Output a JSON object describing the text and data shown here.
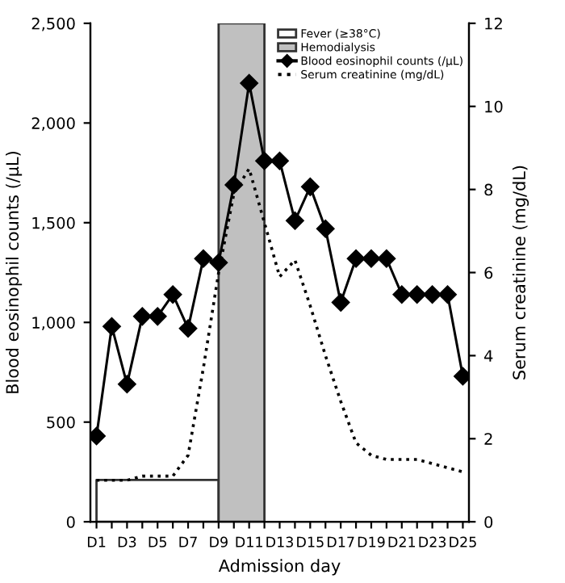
{
  "chart_data": {
    "type": "line",
    "xlabel": "Admission day",
    "ylabel": "Blood eosinophil counts (/μL)",
    "y2label": "Serum creatinine (mg/dL)",
    "categories": [
      "D1",
      null,
      "D3",
      null,
      "D5",
      null,
      "D7",
      null,
      "D9",
      null,
      "D11",
      null,
      "D13",
      null,
      "D15",
      null,
      "D17",
      null,
      "D19",
      null,
      "D21",
      null,
      "D23",
      null,
      "D25"
    ],
    "series": [
      {
        "name": "Fever (≥38°C)",
        "type": "area",
        "color": "#ffffff",
        "values": [
          210,
          210,
          210,
          210,
          210,
          210,
          210,
          210,
          210,
          null,
          null,
          null,
          null,
          null,
          null,
          null,
          null,
          null,
          null,
          null,
          null,
          null,
          null,
          null,
          null
        ]
      },
      {
        "name": "Hemodialysis",
        "type": "area",
        "color": "#c0c0c0",
        "values": [
          null,
          null,
          null,
          null,
          null,
          null,
          null,
          null,
          2500,
          2500,
          2500,
          2500,
          null,
          null,
          null,
          null,
          null,
          null,
          null,
          null,
          null,
          null,
          null,
          null,
          null
        ]
      },
      {
        "name": "Blood eosinophil counts (/μL)",
        "color": "#000000",
        "marker": "diamond",
        "line_style": "solid",
        "values": [
          430,
          980,
          690,
          1030,
          1030,
          1140,
          970,
          1320,
          1300,
          1690,
          2200,
          1810,
          1810,
          1510,
          1680,
          1470,
          1100,
          1320,
          1320,
          1320,
          1140,
          1140,
          1140,
          1140,
          730
        ]
      },
      {
        "name": "Serum creatinine (mg/dL)",
        "type": "line",
        "axis": "y2",
        "color": "#000000",
        "marker": "none",
        "line_style": "dotted",
        "values": [
          1.0,
          1.0,
          1.0,
          1.1,
          1.1,
          1.1,
          1.6,
          3.7,
          6.0,
          7.9,
          8.5,
          7.2,
          5.9,
          6.3,
          5.2,
          4.0,
          2.9,
          1.9,
          1.6,
          1.5,
          1.5,
          1.5,
          1.4,
          1.3,
          1.2
        ]
      }
    ],
    "ylim": [
      0,
      2500
    ],
    "yticks": [
      {
        "value": 0,
        "label": "0"
      },
      {
        "value": 500,
        "label": "500"
      },
      {
        "value": 1000,
        "label": "1,000"
      },
      {
        "value": 1500,
        "label": "1,500"
      },
      {
        "value": 2000,
        "label": "2,000"
      },
      {
        "value": 2500,
        "label": "2,500"
      }
    ],
    "y2lim": [
      0,
      12
    ],
    "y2ticks": [
      0,
      2,
      4,
      6,
      8,
      10,
      12
    ],
    "grid": false,
    "legend": "top right"
  }
}
